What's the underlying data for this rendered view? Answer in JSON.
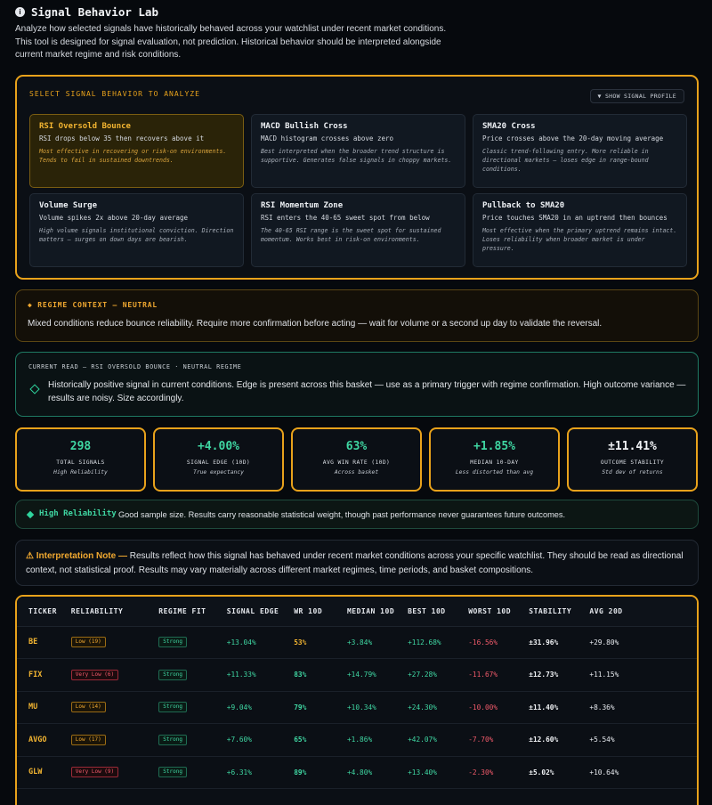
{
  "header": {
    "title": "Signal Behavior Lab",
    "description": "Analyze how selected signals have historically behaved across your watchlist under recent market conditions. This tool is designed for signal evaluation, not prediction. Historical behavior should be interpreted alongside current market regime and risk conditions."
  },
  "picker": {
    "label": "SELECT SIGNAL BEHAVIOR TO ANALYZE",
    "profile_button": "▼ SHOW SIGNAL PROFILE",
    "cards": [
      {
        "title": "RSI Oversold Bounce",
        "sub": "RSI drops below 35 then recovers above it",
        "note": "Most effective in recovering or risk-on environments. Tends to fail in sustained downtrends.",
        "active": true
      },
      {
        "title": "MACD Bullish Cross",
        "sub": "MACD histogram crosses above zero",
        "note": "Best interpreted when the broader trend structure is supportive. Generates false signals in choppy markets.",
        "active": false
      },
      {
        "title": "SMA20 Cross",
        "sub": "Price crosses above the 20-day moving average",
        "note": "Classic trend-following entry. More reliable in directional markets — loses edge in range-bound conditions.",
        "active": false
      },
      {
        "title": "Volume Surge",
        "sub": "Volume spikes 2x above 20-day average",
        "note": "High volume signals institutional conviction. Direction matters — surges on down days are bearish.",
        "active": false
      },
      {
        "title": "RSI Momentum Zone",
        "sub": "RSI enters the 40-65 sweet spot from below",
        "note": "The 40-65 RSI range is the sweet spot for sustained momentum. Works best in risk-on environments.",
        "active": false
      },
      {
        "title": "Pullback to SMA20",
        "sub": "Price touches SMA20 in an uptrend then bounces",
        "note": "Most effective when the primary uptrend remains intact. Loses reliability when broader market is under pressure.",
        "active": false
      }
    ]
  },
  "regime": {
    "label": "◆ REGIME CONTEXT — NEUTRAL",
    "text": "Mixed conditions reduce bounce reliability. Require more confirmation before acting — wait for volume or a second up day to validate the reversal."
  },
  "current_read": {
    "label": "CURRENT READ — RSI OVERSOLD BOUNCE · NEUTRAL REGIME",
    "text": "Historically positive signal in current conditions. Edge is present across this basket — use as a primary trigger with regime confirmation. High outcome variance — results are noisy. Size accordingly."
  },
  "metrics": [
    {
      "value": "298",
      "label": "TOTAL SIGNALS",
      "sub": "High Reliability",
      "color": "green"
    },
    {
      "value": "+4.00%",
      "label": "SIGNAL EDGE (10D)",
      "sub": "True expectancy",
      "color": "green"
    },
    {
      "value": "63%",
      "label": "AVG WIN RATE (10D)",
      "sub": "Across basket",
      "color": "green"
    },
    {
      "value": "+1.85%",
      "label": "MEDIAN 10-DAY",
      "sub": "Less distorted than avg",
      "color": "green"
    },
    {
      "value": "±11.41%",
      "label": "OUTCOME STABILITY",
      "sub": "Std dev of returns",
      "color": "white"
    }
  ],
  "reliability": {
    "label": "High Reliability",
    "text": "Good sample size. Results carry reasonable statistical weight, though past performance never guarantees future outcomes."
  },
  "interpretation": {
    "head": "⚠ Interpretation Note —",
    "text": " Results reflect how this signal has behaved under recent market conditions across your specific watchlist. They should be read as directional context, not statistical proof. Results may vary materially across different market regimes, time periods, and basket compositions."
  },
  "table": {
    "columns": [
      "TICKER",
      "RELIABILITY",
      "REGIME FIT",
      "SIGNAL EDGE",
      "WR 10D",
      "MEDIAN 10D",
      "BEST 10D",
      "WORST 10D",
      "STABILITY",
      "AVG 20D"
    ],
    "rows": [
      {
        "ticker": "BE",
        "reliability": "Low (19)",
        "rel_level": "low",
        "regime_fit": "Strong",
        "edge": "+13.04%",
        "wr": "53%",
        "wr_color": "gold",
        "median": "+3.84%",
        "best": "+112.68%",
        "worst": "-16.56%",
        "stability": "±31.96%",
        "avg20": "+29.80%"
      },
      {
        "ticker": "FIX",
        "reliability": "Very Low (6)",
        "rel_level": "vlow",
        "regime_fit": "Strong",
        "edge": "+11.33%",
        "wr": "83%",
        "wr_color": "green",
        "median": "+14.79%",
        "best": "+27.28%",
        "worst": "-11.67%",
        "stability": "±12.73%",
        "avg20": "+11.15%"
      },
      {
        "ticker": "MU",
        "reliability": "Low (14)",
        "rel_level": "low",
        "regime_fit": "Strong",
        "edge": "+9.04%",
        "wr": "79%",
        "wr_color": "green",
        "median": "+10.34%",
        "best": "+24.30%",
        "worst": "-10.00%",
        "stability": "±11.40%",
        "avg20": "+8.36%"
      },
      {
        "ticker": "AVGO",
        "reliability": "Low (17)",
        "rel_level": "low",
        "regime_fit": "Strong",
        "edge": "+7.60%",
        "wr": "65%",
        "wr_color": "green",
        "median": "+1.86%",
        "best": "+42.07%",
        "worst": "-7.70%",
        "stability": "±12.60%",
        "avg20": "+5.54%"
      },
      {
        "ticker": "GLW",
        "reliability": "Very Low (9)",
        "rel_level": "vlow",
        "regime_fit": "Strong",
        "edge": "+6.31%",
        "wr": "89%",
        "wr_color": "green",
        "median": "+4.80%",
        "best": "+13.40%",
        "worst": "-2.30%",
        "stability": "±5.02%",
        "avg20": "+10.64%"
      },
      {
        "ticker": "",
        "reliability": "",
        "rel_level": "low",
        "regime_fit": "",
        "edge": "",
        "wr": "",
        "wr_color": "green",
        "median": "",
        "best": "",
        "worst": "",
        "stability": "",
        "avg20": ""
      }
    ]
  }
}
